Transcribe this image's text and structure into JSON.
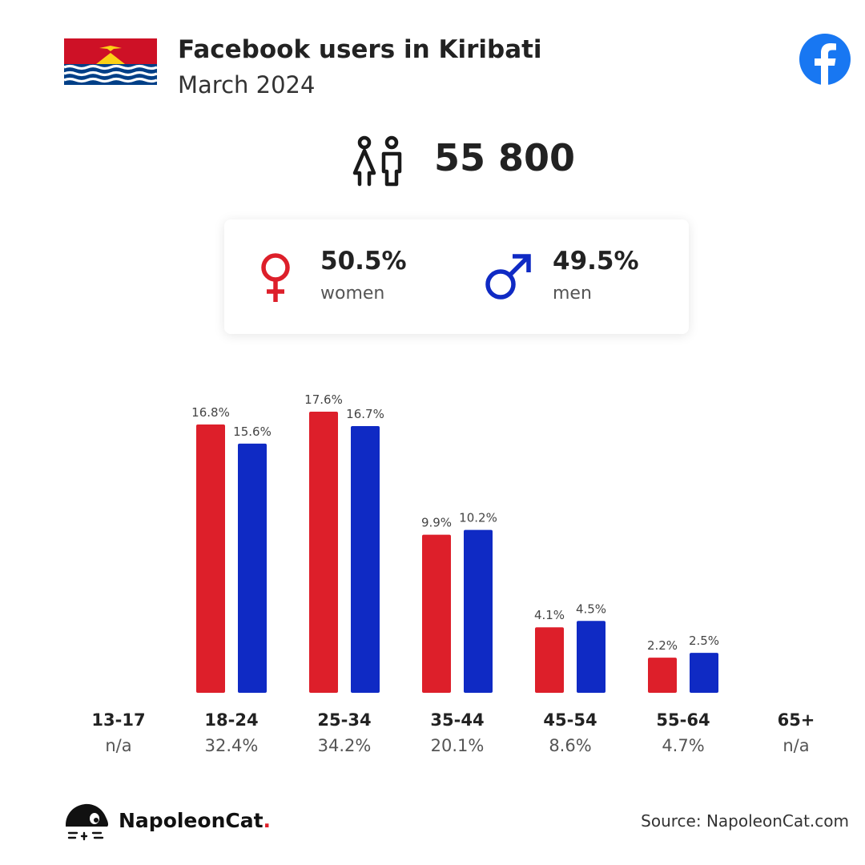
{
  "header": {
    "title": "Facebook users in Kiribati",
    "subtitle": "March 2024"
  },
  "total_users": "55 800",
  "gender": {
    "women": {
      "percent": "50.5%",
      "label": "women"
    },
    "men": {
      "percent": "49.5%",
      "label": "men"
    }
  },
  "colors": {
    "women": "#dd1f2a",
    "men": "#0f2ac4",
    "facebook": "#1877f2"
  },
  "icons": [
    "kiribati-flag-icon",
    "facebook-logo-icon",
    "people-icon",
    "female-symbol-icon",
    "male-symbol-icon",
    "napoleoncat-logo-icon"
  ],
  "chart_data": {
    "type": "bar",
    "categories": [
      "13-17",
      "18-24",
      "25-34",
      "35-44",
      "45-54",
      "55-64",
      "65+"
    ],
    "category_totals": [
      "n/a",
      "32.4%",
      "34.2%",
      "20.1%",
      "8.6%",
      "4.7%",
      "n/a"
    ],
    "series": [
      {
        "name": "women",
        "values": [
          null,
          16.8,
          17.6,
          9.9,
          4.1,
          2.2,
          null
        ],
        "labels": [
          "",
          "16.8%",
          "17.6%",
          "9.9%",
          "4.1%",
          "2.2%",
          ""
        ]
      },
      {
        "name": "men",
        "values": [
          null,
          15.6,
          16.7,
          10.2,
          4.5,
          2.5,
          null
        ],
        "labels": [
          "",
          "15.6%",
          "16.7%",
          "10.2%",
          "4.5%",
          "2.5%",
          ""
        ]
      }
    ],
    "ylim": [
      0,
      17.6
    ]
  },
  "footer": {
    "brand": "NapoleonCat",
    "brand_dot": ".",
    "source": "Source: NapoleonCat.com"
  }
}
